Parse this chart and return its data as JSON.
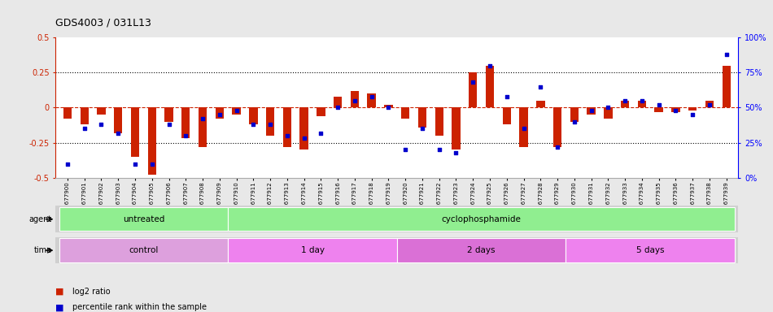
{
  "title": "GDS4003 / 031L13",
  "samples": [
    "GSM677900",
    "GSM677901",
    "GSM677902",
    "GSM677903",
    "GSM677904",
    "GSM677905",
    "GSM677906",
    "GSM677907",
    "GSM677908",
    "GSM677909",
    "GSM677910",
    "GSM677911",
    "GSM677912",
    "GSM677913",
    "GSM677914",
    "GSM677915",
    "GSM677916",
    "GSM677917",
    "GSM677918",
    "GSM677919",
    "GSM677920",
    "GSM677921",
    "GSM677922",
    "GSM677923",
    "GSM677924",
    "GSM677925",
    "GSM677926",
    "GSM677927",
    "GSM677928",
    "GSM677929",
    "GSM677930",
    "GSM677931",
    "GSM677932",
    "GSM677933",
    "GSM677934",
    "GSM677935",
    "GSM677936",
    "GSM677937",
    "GSM677938",
    "GSM677939"
  ],
  "log2_ratio": [
    -0.08,
    -0.12,
    -0.05,
    -0.18,
    -0.35,
    -0.48,
    -0.1,
    -0.22,
    -0.28,
    -0.08,
    -0.05,
    -0.12,
    -0.2,
    -0.28,
    -0.3,
    -0.06,
    0.08,
    0.12,
    0.1,
    0.02,
    -0.08,
    -0.14,
    -0.2,
    -0.3,
    0.25,
    0.3,
    -0.12,
    -0.28,
    0.05,
    -0.28,
    -0.1,
    -0.05,
    -0.08,
    0.05,
    0.05,
    -0.03,
    -0.03,
    -0.02,
    0.05,
    0.3
  ],
  "percentile_rank": [
    10,
    35,
    38,
    32,
    10,
    10,
    38,
    30,
    42,
    45,
    48,
    38,
    38,
    30,
    28,
    32,
    50,
    55,
    58,
    50,
    20,
    35,
    20,
    18,
    68,
    80,
    58,
    35,
    65,
    22,
    40,
    48,
    50,
    55,
    55,
    52,
    48,
    45,
    52,
    88
  ],
  "ylim_left": [
    -0.5,
    0.5
  ],
  "ylim_right": [
    0,
    100
  ],
  "yticks_left": [
    -0.5,
    -0.25,
    0.0,
    0.25,
    0.5
  ],
  "yticks_right": [
    0,
    25,
    50,
    75,
    100
  ],
  "ytick_labels_left": [
    "-0.5",
    "-0.25",
    "0",
    "0.25",
    "0.5"
  ],
  "ytick_labels_right": [
    "0%",
    "25%",
    "50%",
    "75%",
    "100%"
  ],
  "bar_color": "#CC2200",
  "dot_color": "#0000CC",
  "agent_groups": [
    {
      "label": "untreated",
      "start": 0,
      "end": 9,
      "color": "#90EE90"
    },
    {
      "label": "cyclophosphamide",
      "start": 10,
      "end": 39,
      "color": "#90EE90"
    }
  ],
  "time_groups": [
    {
      "label": "control",
      "start": 0,
      "end": 9,
      "color": "#DDA0DD"
    },
    {
      "label": "1 day",
      "start": 10,
      "end": 19,
      "color": "#EE82EE"
    },
    {
      "label": "2 days",
      "start": 20,
      "end": 29,
      "color": "#DA70D6"
    },
    {
      "label": "5 days",
      "start": 30,
      "end": 39,
      "color": "#EE82EE"
    }
  ],
  "fig_bg": "#E8E8E8",
  "plot_bg": "#FFFFFF"
}
